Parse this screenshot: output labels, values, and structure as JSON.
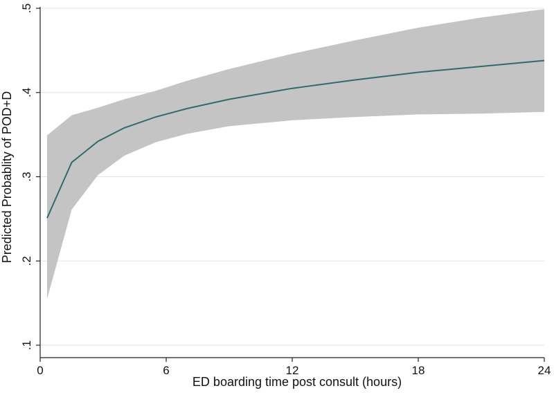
{
  "chart_data": {
    "type": "line",
    "title": "",
    "xlabel": "ED boarding time post consult (hours)",
    "ylabel": "Predicted Probablity of POD+D",
    "xlim": [
      0,
      24
    ],
    "ylim": [
      0.1,
      0.5
    ],
    "x_ticks": [
      0,
      6,
      12,
      18,
      24
    ],
    "x_tick_labels": [
      "0",
      "6",
      "12",
      "18",
      "24"
    ],
    "y_ticks": [
      0.1,
      0.2,
      0.3,
      0.4,
      0.5
    ],
    "y_tick_labels": [
      ".1",
      ".2",
      ".3",
      ".4",
      ".5"
    ],
    "grid": "horizontal",
    "colors": {
      "line": "#2e6b6b",
      "band": "#c4c4c4",
      "grid": "#dde6ea",
      "axis": "#222222"
    },
    "series": [
      {
        "x": [
          0.33,
          1.5,
          2.75,
          4,
          5.5,
          7,
          9,
          12,
          15,
          18,
          21,
          24
        ],
        "y": [
          0.251,
          0.317,
          0.342,
          0.358,
          0.371,
          0.381,
          0.392,
          0.405,
          0.415,
          0.424,
          0.431,
          0.438
        ],
        "lower": [
          0.155,
          0.261,
          0.302,
          0.325,
          0.341,
          0.351,
          0.36,
          0.367,
          0.371,
          0.374,
          0.375,
          0.377
        ],
        "upper": [
          0.349,
          0.373,
          0.382,
          0.392,
          0.402,
          0.414,
          0.428,
          0.446,
          0.462,
          0.477,
          0.489,
          0.499
        ]
      }
    ]
  }
}
